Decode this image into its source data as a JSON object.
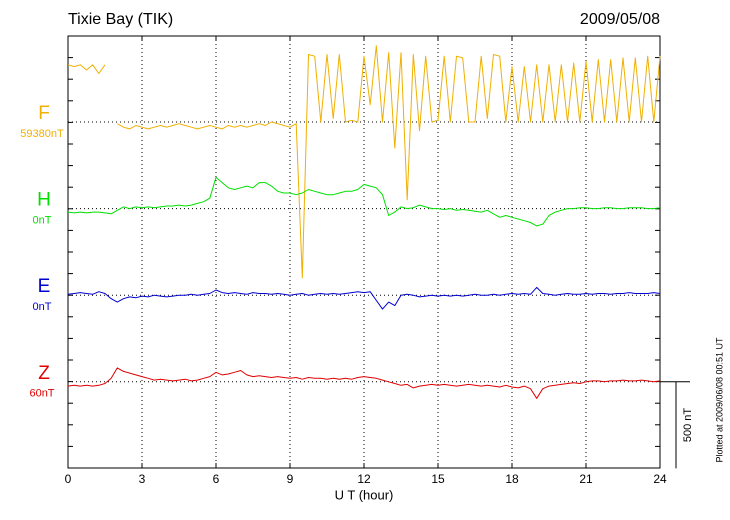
{
  "chart_data": {
    "type": "line",
    "title": "Tixie Bay (TIK)",
    "date": "2009/05/08",
    "xlabel": "U T (hour)",
    "note": "Plotted at 2009/06/08 00:51 UT",
    "scale_bar": {
      "value": 500,
      "label": "500 nT"
    },
    "xlim": [
      0,
      24
    ],
    "xticks": [
      0,
      3,
      6,
      9,
      12,
      15,
      18,
      21,
      24
    ],
    "grid": true,
    "x": [
      0,
      0.25,
      0.5,
      0.75,
      1,
      1.25,
      1.5,
      1.75,
      2,
      2.25,
      2.5,
      2.75,
      3,
      3.25,
      3.5,
      3.75,
      4,
      4.25,
      4.5,
      4.75,
      5,
      5.25,
      5.5,
      5.75,
      6,
      6.25,
      6.5,
      6.75,
      7,
      7.25,
      7.5,
      7.75,
      8,
      8.25,
      8.5,
      8.75,
      9,
      9.25,
      9.5,
      9.75,
      10,
      10.25,
      10.5,
      10.75,
      11,
      11.25,
      11.5,
      11.75,
      12,
      12.25,
      12.5,
      12.75,
      13,
      13.25,
      13.5,
      13.75,
      14,
      14.25,
      14.5,
      14.75,
      15,
      15.25,
      15.5,
      15.75,
      16,
      16.25,
      16.5,
      16.75,
      17,
      17.25,
      17.5,
      17.75,
      18,
      18.25,
      18.5,
      18.75,
      19,
      19.25,
      19.5,
      19.75,
      20,
      20.25,
      20.5,
      20.75,
      21,
      21.25,
      21.5,
      21.75,
      22,
      22.25,
      22.5,
      22.75,
      23,
      23.25,
      23.5,
      23.75,
      24
    ],
    "series": [
      {
        "name": "F",
        "baseline_label": "59380nT",
        "color": "#f0b000",
        "values": [
          330,
          320,
          330,
          300,
          330,
          280,
          330,
          null,
          -10,
          -30,
          -40,
          -20,
          -30,
          -40,
          -30,
          -20,
          -30,
          -20,
          -10,
          -20,
          -30,
          -40,
          -30,
          -20,
          -30,
          -40,
          -20,
          -30,
          -20,
          -30,
          -20,
          -10,
          -20,
          0,
          -10,
          -20,
          -30,
          -10,
          -900,
          390,
          380,
          0,
          390,
          20,
          390,
          0,
          10,
          0,
          380,
          100,
          440,
          0,
          400,
          -150,
          400,
          -450,
          390,
          -50,
          380,
          0,
          10,
          380,
          0,
          380,
          370,
          0,
          0,
          380,
          20,
          390,
          380,
          0,
          320,
          0,
          320,
          0,
          330,
          0,
          330,
          0,
          330,
          0,
          340,
          0,
          350,
          0,
          360,
          0,
          360,
          0,
          370,
          0,
          370,
          0,
          380,
          0,
          380
        ]
      },
      {
        "name": "H",
        "baseline_label": "0nT",
        "color": "#00e000",
        "values": [
          -20,
          -25,
          -20,
          -25,
          -20,
          -20,
          -25,
          -30,
          -10,
          10,
          0,
          10,
          5,
          10,
          5,
          10,
          15,
          15,
          20,
          15,
          20,
          30,
          40,
          60,
          180,
          150,
          120,
          110,
          120,
          130,
          120,
          150,
          150,
          130,
          100,
          90,
          90,
          80,
          90,
          110,
          100,
          90,
          80,
          80,
          90,
          100,
          100,
          110,
          140,
          130,
          120,
          80,
          -40,
          -20,
          10,
          0,
          5,
          20,
          10,
          0,
          0,
          -5,
          0,
          -10,
          -5,
          -10,
          -15,
          -20,
          -10,
          -30,
          -50,
          -40,
          -50,
          -60,
          -70,
          -80,
          -100,
          -90,
          -40,
          -20,
          -10,
          0,
          0,
          5,
          5,
          0,
          0,
          5,
          5,
          0,
          0,
          5,
          5,
          5,
          0,
          0,
          5
        ]
      },
      {
        "name": "E",
        "baseline_label": "0nT",
        "color": "#0000d0",
        "values": [
          5,
          10,
          15,
          10,
          5,
          20,
          10,
          -20,
          -40,
          -20,
          -10,
          -15,
          -5,
          -10,
          0,
          -5,
          -10,
          -5,
          0,
          0,
          5,
          0,
          5,
          10,
          30,
          15,
          10,
          15,
          10,
          5,
          15,
          10,
          10,
          5,
          10,
          5,
          0,
          5,
          10,
          0,
          5,
          10,
          5,
          10,
          5,
          10,
          15,
          20,
          15,
          20,
          -30,
          -80,
          -40,
          -60,
          0,
          5,
          0,
          -10,
          -5,
          0,
          -5,
          0,
          -5,
          0,
          -5,
          0,
          5,
          0,
          0,
          5,
          0,
          5,
          10,
          5,
          10,
          5,
          45,
          10,
          5,
          0,
          5,
          10,
          5,
          5,
          10,
          5,
          10,
          10,
          5,
          10,
          10,
          15,
          10,
          10,
          10,
          15,
          10
        ]
      },
      {
        "name": "Z",
        "baseline_label": "60nT",
        "color": "#e00000",
        "values": [
          -25,
          -20,
          -25,
          -20,
          -25,
          -20,
          -10,
          20,
          80,
          60,
          50,
          40,
          30,
          20,
          10,
          15,
          10,
          5,
          10,
          15,
          5,
          10,
          20,
          30,
          55,
          40,
          45,
          55,
          65,
          40,
          30,
          35,
          30,
          25,
          30,
          25,
          20,
          25,
          15,
          25,
          20,
          20,
          15,
          20,
          15,
          20,
          15,
          25,
          30,
          25,
          20,
          10,
          0,
          -10,
          -20,
          -15,
          -35,
          -25,
          -20,
          -15,
          -20,
          -15,
          -20,
          -25,
          -20,
          -15,
          -20,
          -25,
          -20,
          -25,
          -30,
          -20,
          -30,
          -35,
          -25,
          -40,
          -95,
          -40,
          -25,
          -20,
          -15,
          -10,
          -5,
          -10,
          0,
          5,
          5,
          0,
          5,
          5,
          10,
          5,
          5,
          10,
          5,
          0,
          5
        ]
      }
    ]
  }
}
